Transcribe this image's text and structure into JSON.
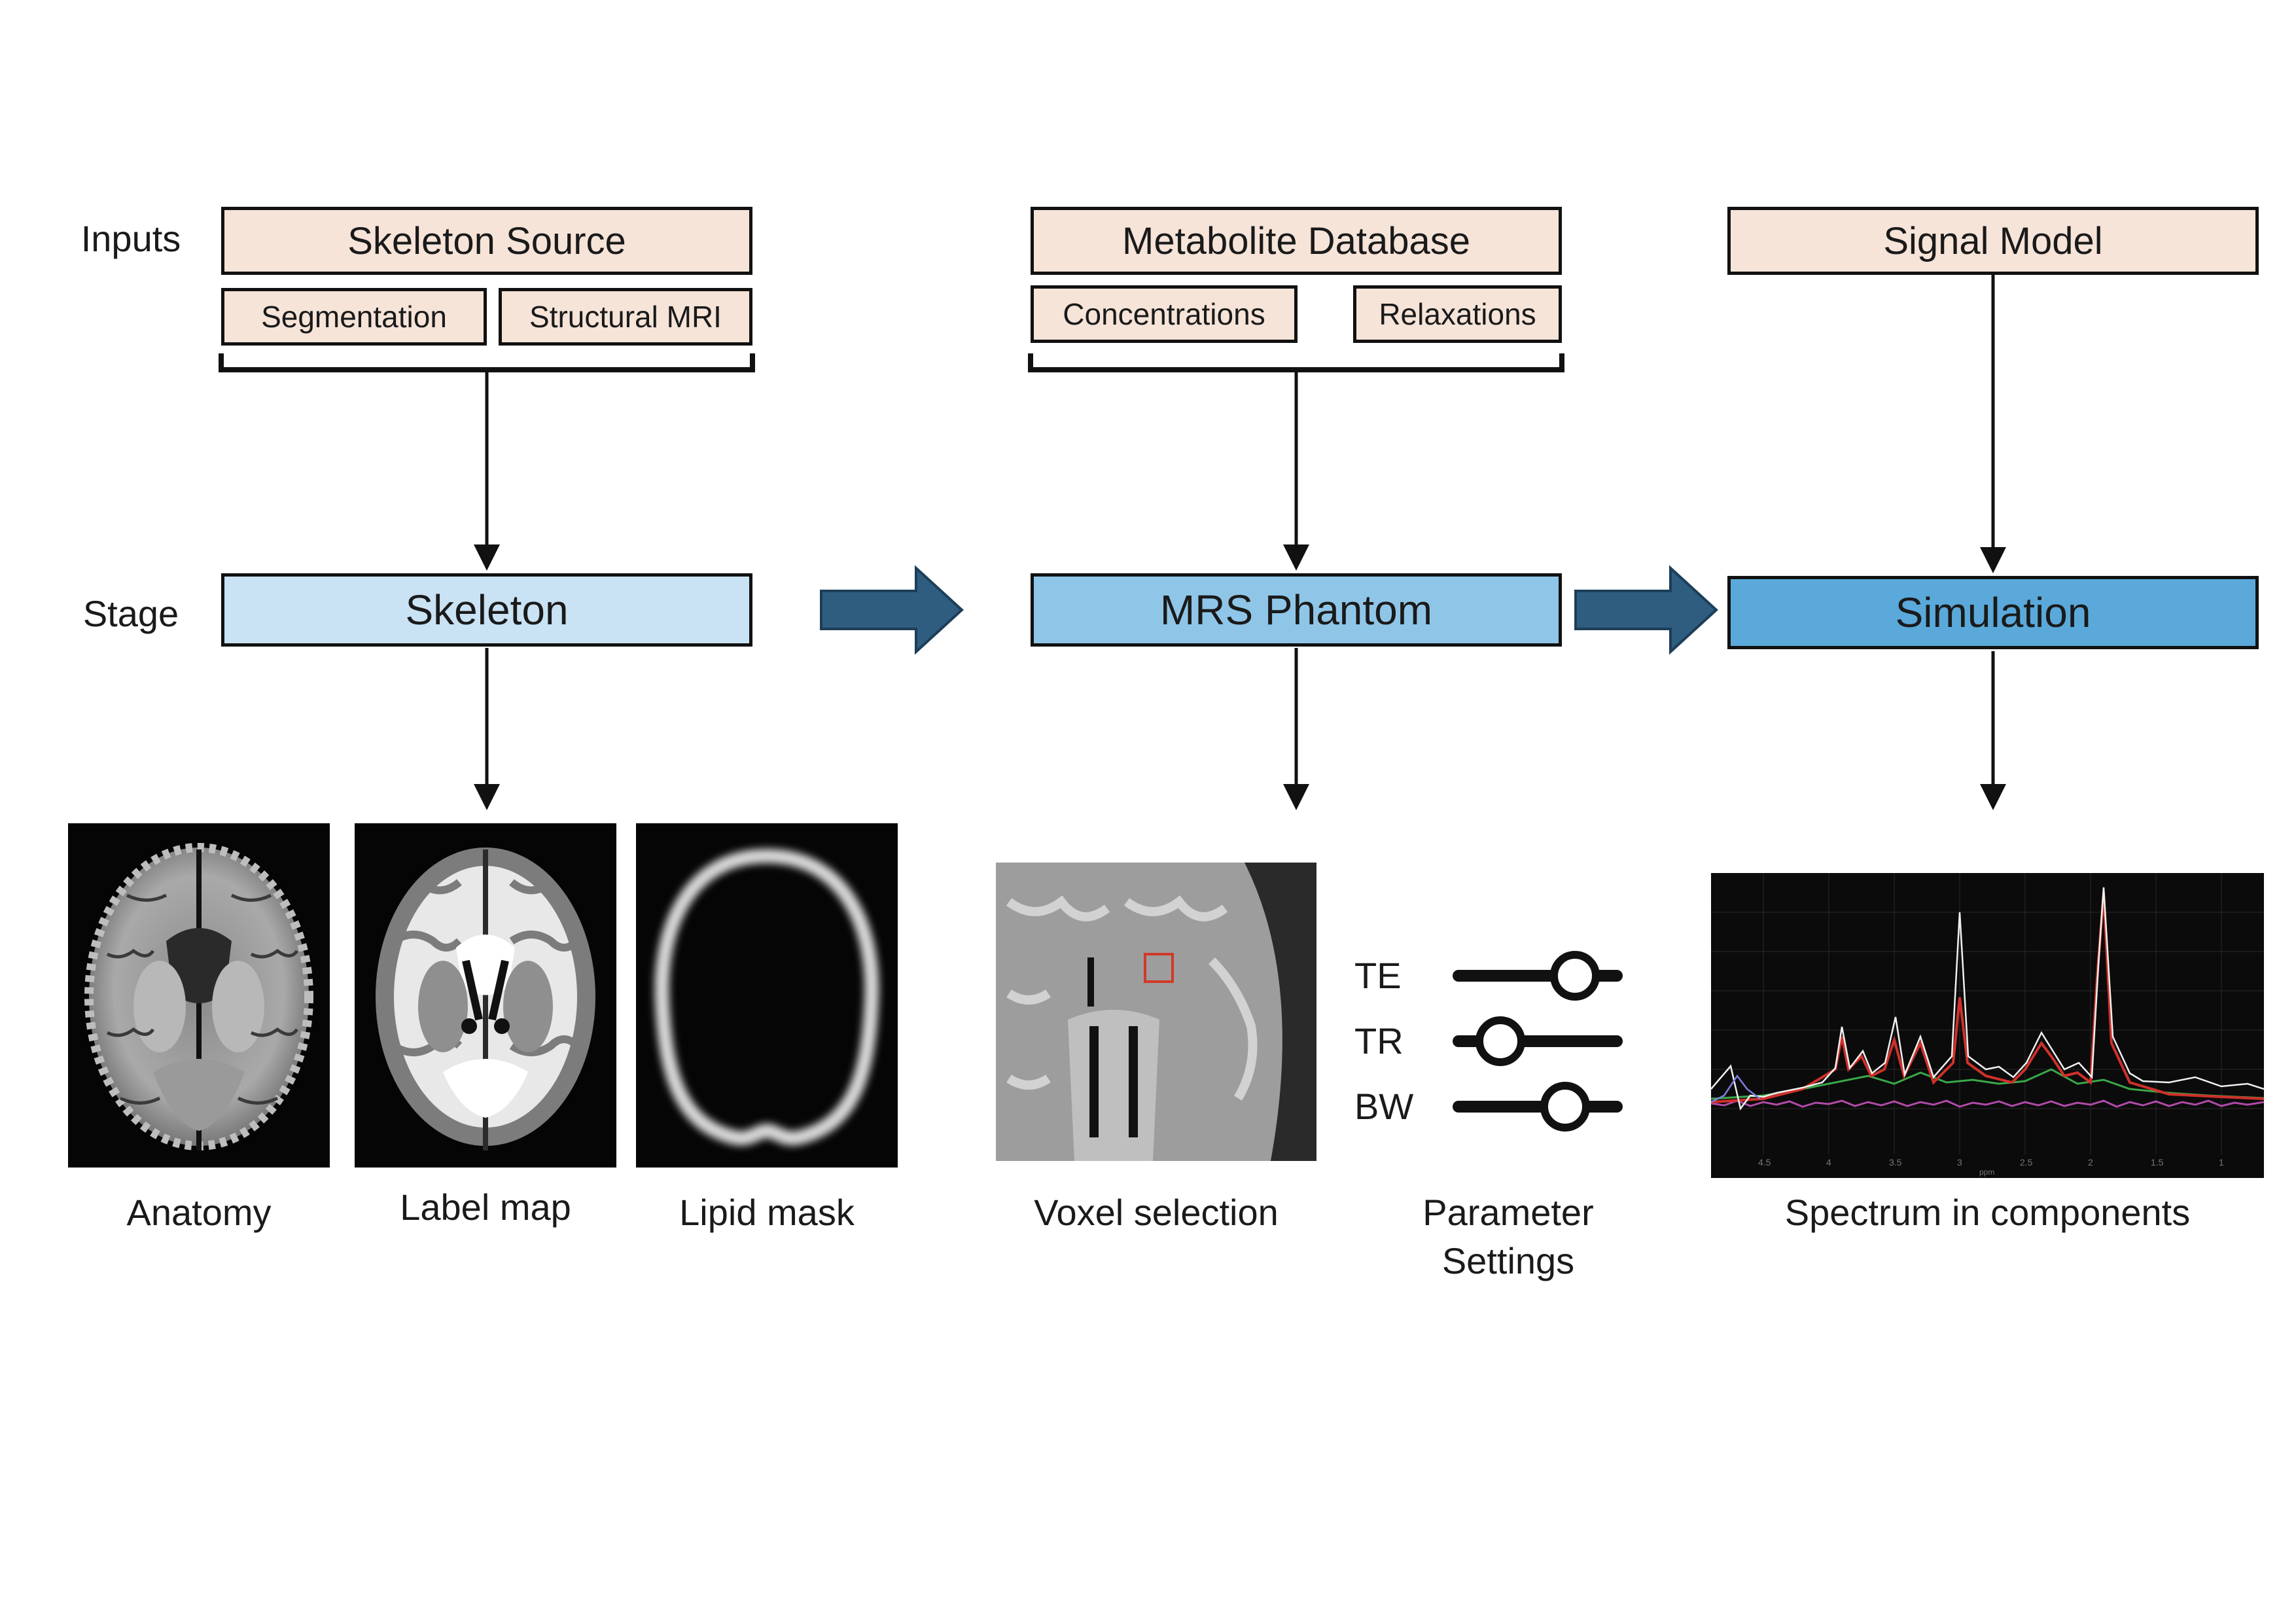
{
  "rows": {
    "inputs_label": "Inputs",
    "stage_label": "Stage"
  },
  "inputs": {
    "skeleton_source": "Skeleton Source",
    "segmentation": "Segmentation",
    "structural_mri": "Structural MRI",
    "metabolite_database": "Metabolite Database",
    "concentrations": "Concentrations",
    "relaxations": "Relaxations",
    "signal_model": "Signal Model"
  },
  "stages": {
    "skeleton": "Skeleton",
    "mrs_phantom": "MRS Phantom",
    "simulation": "Simulation",
    "colors": {
      "skeleton": "#c9e2f4",
      "mrs_phantom": "#8fc6e8",
      "simulation": "#5aa9da",
      "arrow": "#2e5d80",
      "input": "#f6e4d9"
    }
  },
  "outputs": {
    "anatomy": "Anatomy",
    "label_map": "Label map",
    "lipid_mask": "Lipid mask",
    "voxel_selection": "Voxel selection",
    "parameter_settings_line1": "Parameter",
    "parameter_settings_line2": "Settings",
    "spectrum": "Spectrum in components"
  },
  "parameters": [
    {
      "name": "TE",
      "level": 0.72
    },
    {
      "name": "TR",
      "level": 0.28
    },
    {
      "name": "BW",
      "level": 0.66
    }
  ],
  "spectrum_axis": {
    "ticks": [
      "4.5",
      "4",
      "3.5",
      "3",
      "2.5",
      "2",
      "1.5",
      "1"
    ],
    "unit": "ppm"
  },
  "icons": [
    "brain-anatomy-image",
    "brain-label-map-image",
    "lipid-mask-image",
    "voxel-selection-image",
    "slider-icon",
    "spectrum-plot-image",
    "flow-arrow-icon"
  ]
}
